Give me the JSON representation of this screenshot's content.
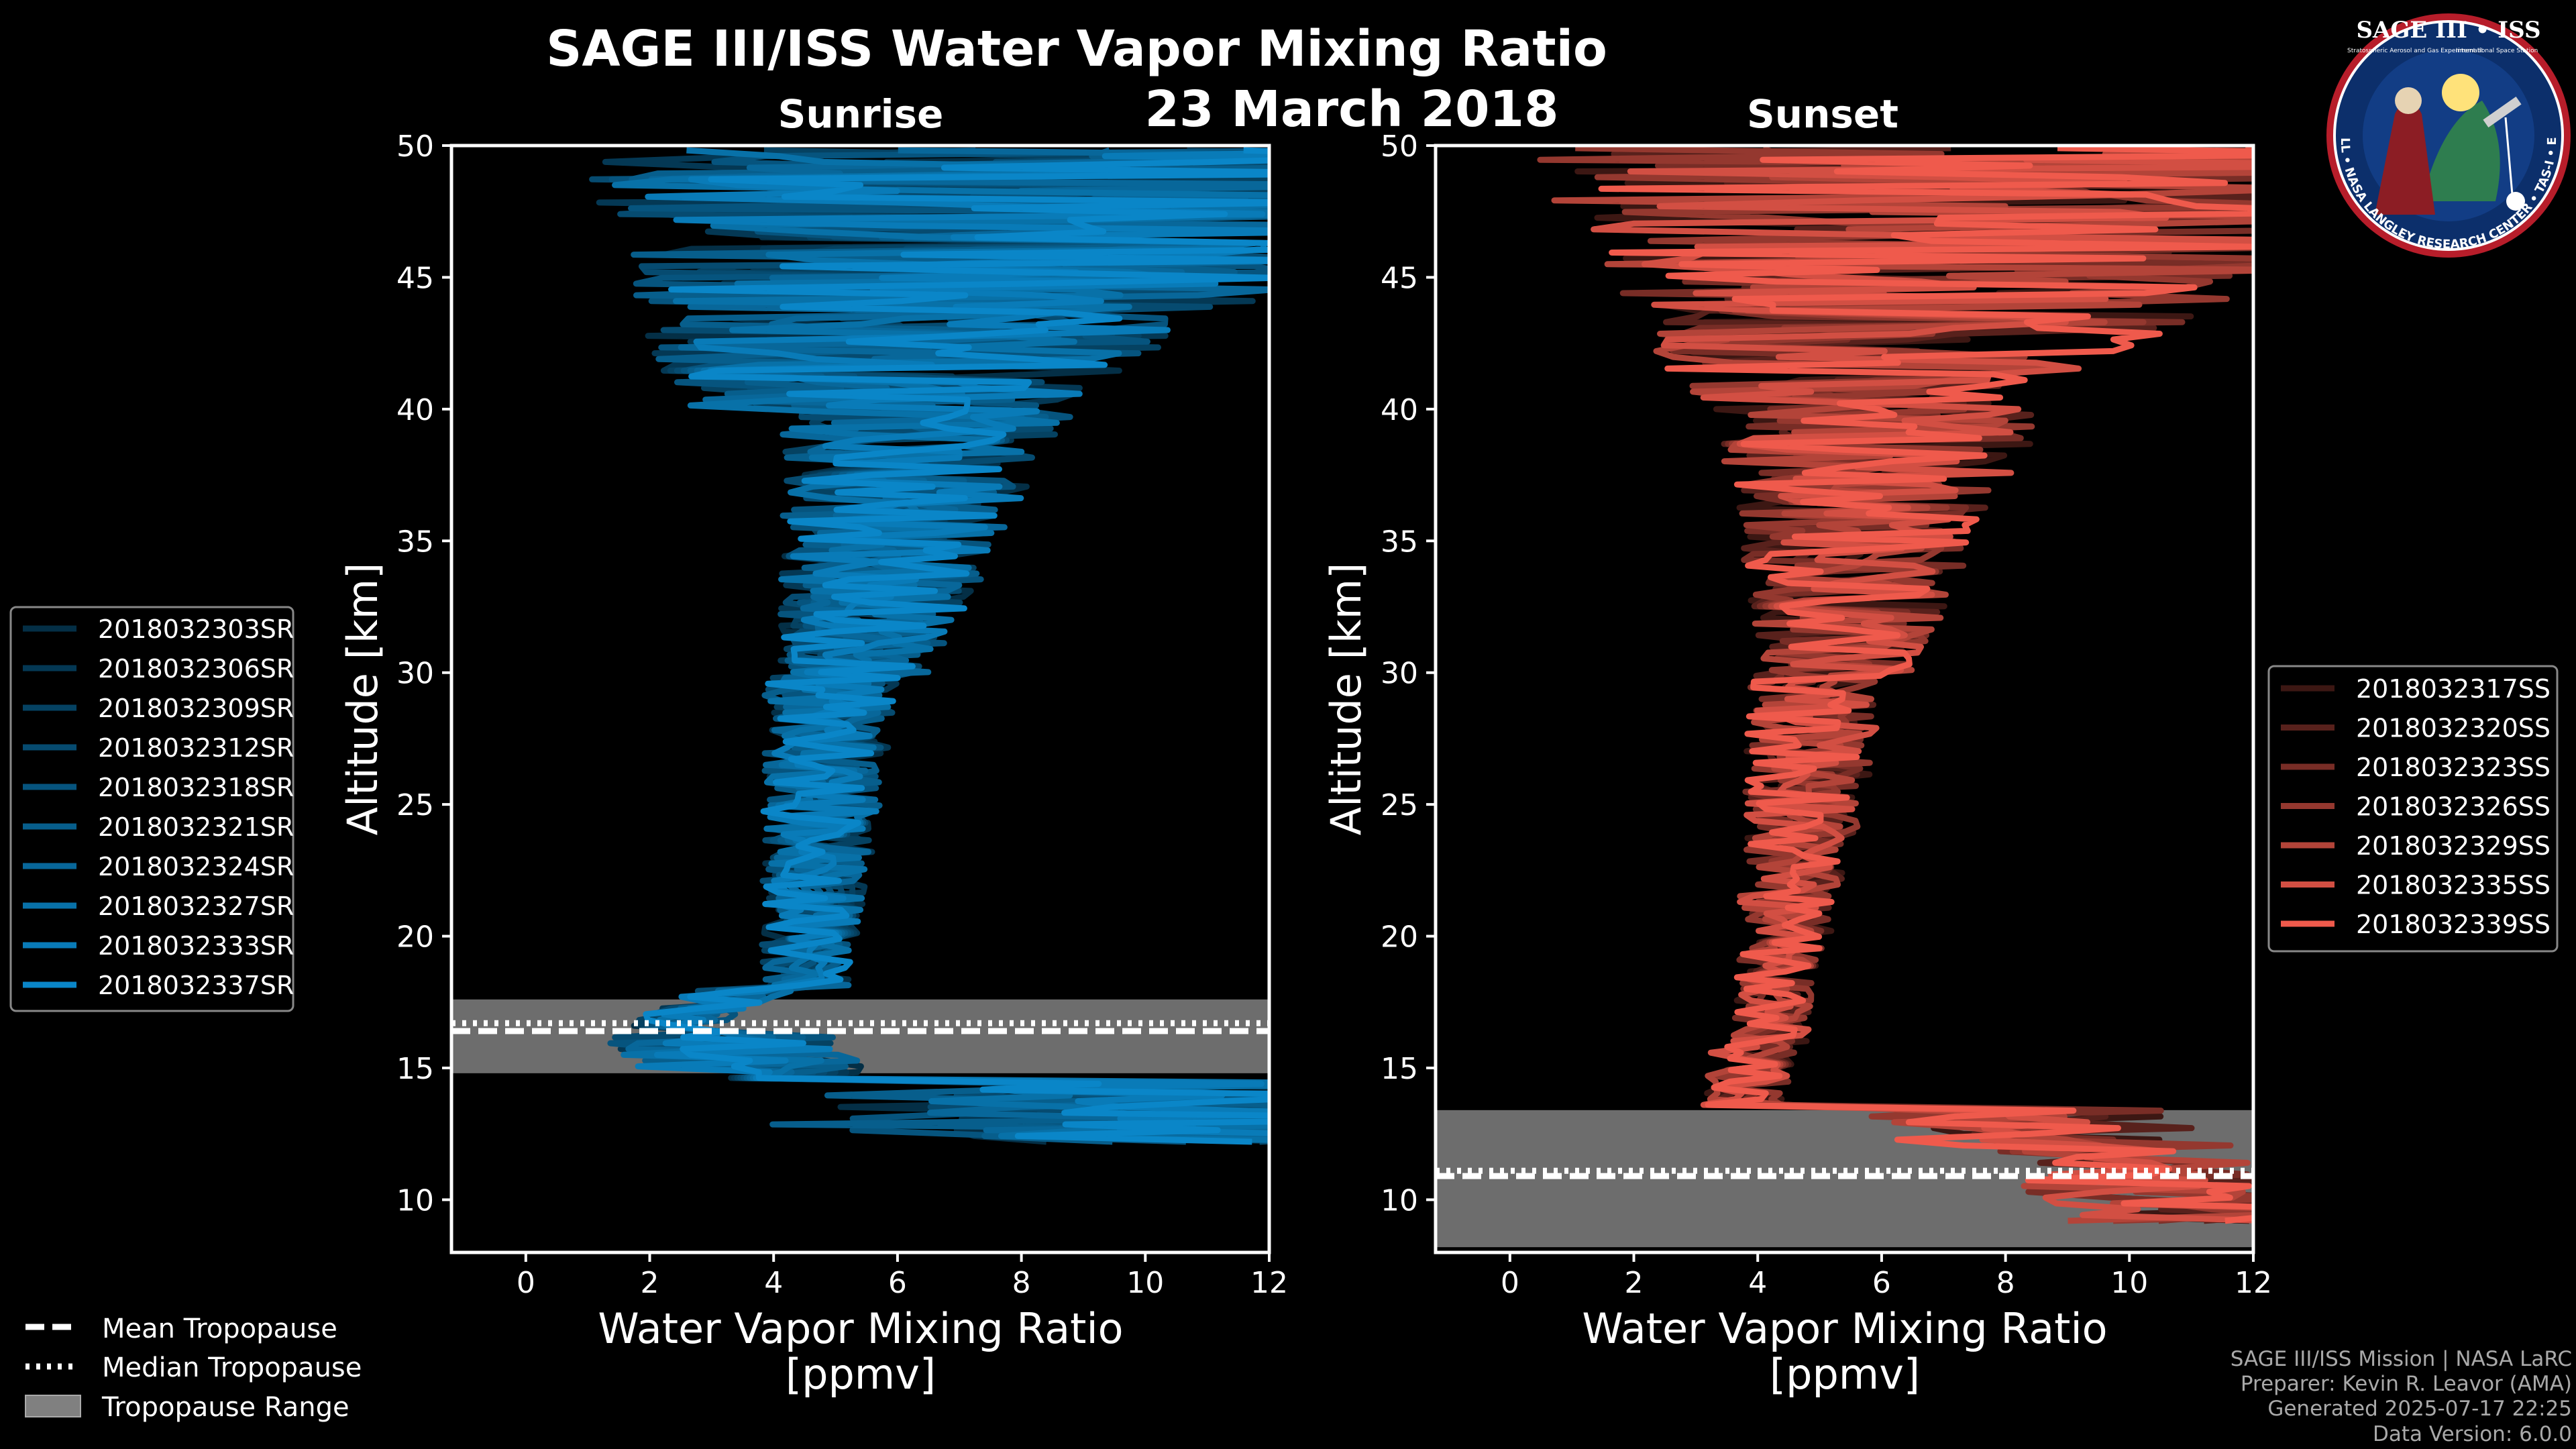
{
  "title": "SAGE III/ISS Water Vapor Mixing Ratio",
  "date": "23 March 2018",
  "colors": {
    "background": "#000000",
    "sunrise": "#0a86c8",
    "sunset": "#ef5a4c",
    "tropopause_band": "#808080",
    "axis": "#ffffff"
  },
  "chart_data": [
    {
      "type": "line",
      "title": "Sunrise",
      "xlabel_line1": "Water Vapor Mixing Ratio",
      "xlabel_line2": "[ppmv]",
      "ylabel": "Altitude [km]",
      "xlim": [
        -1.2,
        12
      ],
      "ylim": [
        8,
        50
      ],
      "xticks": [
        0,
        2,
        4,
        6,
        8,
        10,
        12
      ],
      "yticks": [
        10,
        15,
        20,
        25,
        30,
        35,
        40,
        45,
        50
      ],
      "tropopause": {
        "mean": 16.4,
        "median": 16.7,
        "range": [
          14.8,
          17.6
        ]
      },
      "color": "#0a86c8",
      "series": [
        {
          "name": "2018032303SR",
          "shade": 0.35
        },
        {
          "name": "2018032306SR",
          "shade": 0.42
        },
        {
          "name": "2018032309SR",
          "shade": 0.49
        },
        {
          "name": "2018032312SR",
          "shade": 0.56
        },
        {
          "name": "2018032318SR",
          "shade": 0.63
        },
        {
          "name": "2018032321SR",
          "shade": 0.7
        },
        {
          "name": "2018032324SR",
          "shade": 0.77
        },
        {
          "name": "2018032327SR",
          "shade": 0.84
        },
        {
          "name": "2018032333SR",
          "shade": 0.92
        },
        {
          "name": "2018032337SR",
          "shade": 1.0
        }
      ],
      "profile_shape": "sunrise"
    },
    {
      "type": "line",
      "title": "Sunset",
      "xlabel_line1": "Water Vapor Mixing Ratio",
      "xlabel_line2": "[ppmv]",
      "ylabel": "Altitude [km]",
      "xlim": [
        -1.2,
        12
      ],
      "ylim": [
        8,
        50
      ],
      "xticks": [
        0,
        2,
        4,
        6,
        8,
        10,
        12
      ],
      "yticks": [
        10,
        15,
        20,
        25,
        30,
        35,
        40,
        45,
        50
      ],
      "tropopause": {
        "mean": 10.9,
        "median": 11.1,
        "range": [
          8.2,
          13.4
        ]
      },
      "color": "#ef5a4c",
      "series": [
        {
          "name": "2018032317SS",
          "shade": 0.25
        },
        {
          "name": "2018032320SS",
          "shade": 0.37
        },
        {
          "name": "2018032323SS",
          "shade": 0.5
        },
        {
          "name": "2018032326SS",
          "shade": 0.62
        },
        {
          "name": "2018032329SS",
          "shade": 0.75
        },
        {
          "name": "2018032335SS",
          "shade": 0.88
        },
        {
          "name": "2018032339SS",
          "shade": 1.0
        }
      ],
      "profile_shape": "sunset"
    }
  ],
  "tropopause_legend": {
    "mean": "Mean Tropopause",
    "median": "Median Tropopause",
    "range": "Tropopause Range"
  },
  "footer": {
    "line1": "SAGE III/ISS Mission | NASA LaRC",
    "line2": "Preparer: Kevin R. Leavor (AMA)",
    "line3": "Generated 2025-07-17 22:25",
    "line4": "Data Version: 6.0.0"
  },
  "badge": {
    "title": "SAGE III • ISS",
    "subtitle1": "Stratospheric Aerosol and Gas Experiment III",
    "subtitle2": "International Space Station",
    "ring_text": "BALL • NASA LANGLEY RESEARCH CENTER • TAS-I • ESA"
  }
}
